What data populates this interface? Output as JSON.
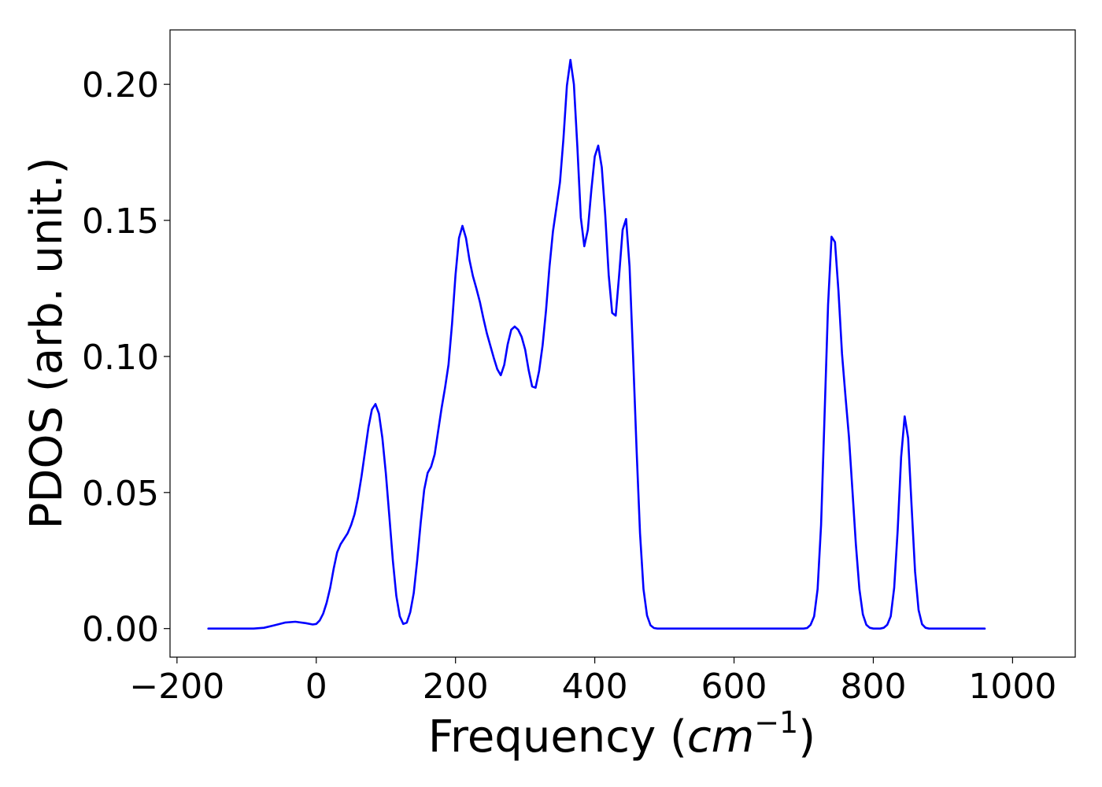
{
  "chart_data": {
    "type": "line",
    "title": "",
    "xlabel_main": "Frequency (",
    "xlabel_italic": "cm",
    "xlabel_sup": "−1",
    "xlabel_close": ")",
    "ylabel": "PDOS (arb. unit.)",
    "xlim": [
      -210,
      1090
    ],
    "ylim": [
      -0.0105,
      0.22
    ],
    "x_ticks": [
      -200,
      0,
      200,
      400,
      600,
      800,
      1000
    ],
    "x_tick_labels": [
      "−200",
      "0",
      "200",
      "400",
      "600",
      "800",
      "1000"
    ],
    "y_ticks": [
      0.0,
      0.05,
      0.1,
      0.15,
      0.2
    ],
    "y_tick_labels": [
      "0.00",
      "0.05",
      "0.10",
      "0.15",
      "0.20"
    ],
    "grid": false,
    "series": [
      {
        "color": "#0000ff",
        "points": [
          [
            -155,
            0.0
          ],
          [
            -120,
            0.0
          ],
          [
            -90,
            0.0
          ],
          [
            -75,
            0.0003
          ],
          [
            -60,
            0.0012
          ],
          [
            -45,
            0.0022
          ],
          [
            -30,
            0.0025
          ],
          [
            -15,
            0.002
          ],
          [
            -5,
            0.0015
          ],
          [
            0,
            0.0017
          ],
          [
            5,
            0.003
          ],
          [
            10,
            0.0055
          ],
          [
            15,
            0.0095
          ],
          [
            20,
            0.015
          ],
          [
            25,
            0.022
          ],
          [
            30,
            0.028
          ],
          [
            35,
            0.031
          ],
          [
            45,
            0.035
          ],
          [
            50,
            0.038
          ],
          [
            55,
            0.042
          ],
          [
            60,
            0.048
          ],
          [
            65,
            0.056
          ],
          [
            70,
            0.065
          ],
          [
            75,
            0.074
          ],
          [
            80,
            0.0805
          ],
          [
            85,
            0.0825
          ],
          [
            90,
            0.079
          ],
          [
            95,
            0.07
          ],
          [
            100,
            0.057
          ],
          [
            105,
            0.041
          ],
          [
            110,
            0.025
          ],
          [
            115,
            0.012
          ],
          [
            120,
            0.0045
          ],
          [
            125,
            0.0017
          ],
          [
            130,
            0.0022
          ],
          [
            135,
            0.006
          ],
          [
            140,
            0.013
          ],
          [
            145,
            0.025
          ],
          [
            150,
            0.039
          ],
          [
            155,
            0.051
          ],
          [
            160,
            0.0572
          ],
          [
            165,
            0.0595
          ],
          [
            170,
            0.064
          ],
          [
            175,
            0.0725
          ],
          [
            180,
            0.081
          ],
          [
            185,
            0.0885
          ],
          [
            190,
            0.097
          ],
          [
            195,
            0.112
          ],
          [
            200,
            0.13
          ],
          [
            205,
            0.1435
          ],
          [
            210,
            0.148
          ],
          [
            215,
            0.1435
          ],
          [
            220,
            0.1355
          ],
          [
            225,
            0.1295
          ],
          [
            230,
            0.125
          ],
          [
            235,
            0.12
          ],
          [
            240,
            0.114
          ],
          [
            245,
            0.1085
          ],
          [
            250,
            0.104
          ],
          [
            255,
            0.0995
          ],
          [
            260,
            0.0953
          ],
          [
            265,
            0.0931
          ],
          [
            270,
            0.0969
          ],
          [
            275,
            0.1045
          ],
          [
            280,
            0.1098
          ],
          [
            285,
            0.111
          ],
          [
            290,
            0.1098
          ],
          [
            295,
            0.1072
          ],
          [
            300,
            0.1025
          ],
          [
            305,
            0.095
          ],
          [
            310,
            0.089
          ],
          [
            315,
            0.0885
          ],
          [
            320,
            0.0945
          ],
          [
            325,
            0.104
          ],
          [
            330,
            0.117
          ],
          [
            335,
            0.133
          ],
          [
            340,
            0.146
          ],
          [
            345,
            0.155
          ],
          [
            350,
            0.164
          ],
          [
            355,
            0.18
          ],
          [
            360,
            0.1995
          ],
          [
            365,
            0.209
          ],
          [
            370,
            0.2
          ],
          [
            375,
            0.177
          ],
          [
            380,
            0.151
          ],
          [
            385,
            0.1405
          ],
          [
            390,
            0.1465
          ],
          [
            395,
            0.161
          ],
          [
            400,
            0.1735
          ],
          [
            405,
            0.1775
          ],
          [
            410,
            0.1695
          ],
          [
            415,
            0.152
          ],
          [
            420,
            0.13
          ],
          [
            425,
            0.116
          ],
          [
            430,
            0.115
          ],
          [
            435,
            0.13
          ],
          [
            440,
            0.1465
          ],
          [
            445,
            0.1505
          ],
          [
            450,
            0.133
          ],
          [
            455,
            0.1
          ],
          [
            460,
            0.066
          ],
          [
            465,
            0.035
          ],
          [
            470,
            0.0145
          ],
          [
            475,
            0.0048
          ],
          [
            480,
            0.0012
          ],
          [
            485,
            0.0002
          ],
          [
            490,
            0.0
          ],
          [
            550,
            0.0
          ],
          [
            610,
            0.0
          ],
          [
            670,
            0.0
          ],
          [
            700,
            0.0
          ],
          [
            705,
            0.0002
          ],
          [
            710,
            0.0014
          ],
          [
            715,
            0.0045
          ],
          [
            720,
            0.0145
          ],
          [
            725,
            0.038
          ],
          [
            730,
            0.078
          ],
          [
            735,
            0.119
          ],
          [
            740,
            0.144
          ],
          [
            745,
            0.142
          ],
          [
            750,
            0.124
          ],
          [
            755,
            0.101
          ],
          [
            760,
            0.0854
          ],
          [
            765,
            0.0705
          ],
          [
            770,
            0.051
          ],
          [
            775,
            0.031
          ],
          [
            780,
            0.0145
          ],
          [
            785,
            0.0052
          ],
          [
            790,
            0.0014
          ],
          [
            795,
            0.0003
          ],
          [
            800,
            0.0
          ],
          [
            810,
            0.0
          ],
          [
            815,
            0.0003
          ],
          [
            820,
            0.0014
          ],
          [
            825,
            0.0045
          ],
          [
            830,
            0.015
          ],
          [
            835,
            0.036
          ],
          [
            840,
            0.063
          ],
          [
            845,
            0.078
          ],
          [
            850,
            0.07
          ],
          [
            855,
            0.045
          ],
          [
            860,
            0.021
          ],
          [
            865,
            0.0068
          ],
          [
            870,
            0.0016
          ],
          [
            875,
            0.0003
          ],
          [
            880,
            0.0
          ],
          [
            930,
            0.0
          ],
          [
            960,
            0.0
          ]
        ]
      }
    ]
  }
}
